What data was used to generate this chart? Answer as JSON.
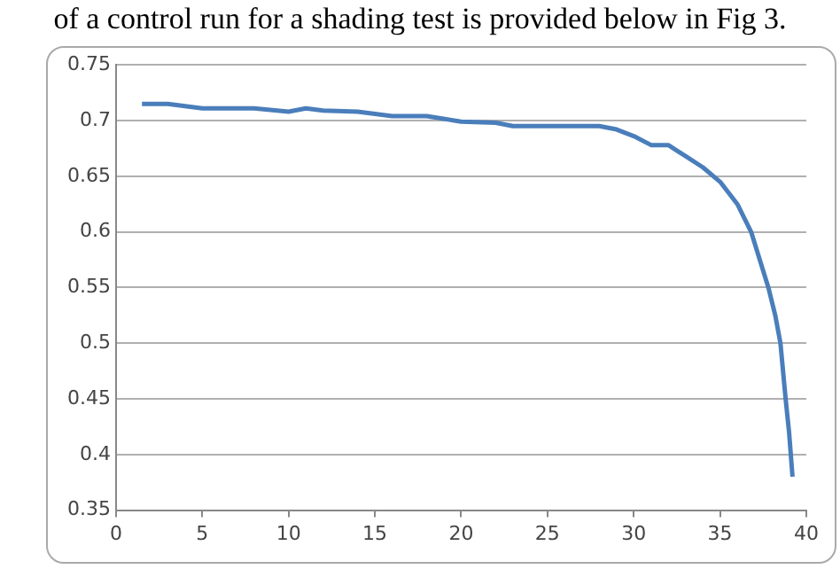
{
  "chart_data": {
    "type": "line",
    "annotations": [
      "of a control run for a shading test is provided below in Fig 3."
    ],
    "x": [
      1.5,
      3,
      5,
      8,
      10,
      11,
      12,
      14,
      16,
      18,
      20,
      22,
      23,
      28,
      29,
      30,
      31,
      32,
      33,
      34,
      35,
      36,
      36.8,
      37.3,
      37.8,
      38.2,
      38.5,
      38.8,
      39,
      39.2
    ],
    "series": [
      {
        "color": "#4a7ebb",
        "values": [
          0.715,
          0.715,
          0.711,
          0.711,
          0.708,
          0.711,
          0.709,
          0.708,
          0.704,
          0.704,
          0.699,
          0.698,
          0.695,
          0.695,
          0.692,
          0.686,
          0.678,
          0.678,
          0.668,
          0.658,
          0.645,
          0.625,
          0.6,
          0.575,
          0.55,
          0.525,
          0.5,
          0.45,
          0.42,
          0.38
        ]
      }
    ],
    "xlim": [
      0,
      40
    ],
    "xticks": [
      0,
      5,
      10,
      15,
      20,
      25,
      30,
      35,
      40
    ],
    "ylim": [
      0.35,
      0.75
    ],
    "yticks": [
      0.35,
      0.4,
      0.45,
      0.5,
      0.55,
      0.6,
      0.65,
      0.7,
      0.75
    ],
    "grid": "y",
    "legend": false,
    "marker": "none",
    "line_style": "solid"
  }
}
